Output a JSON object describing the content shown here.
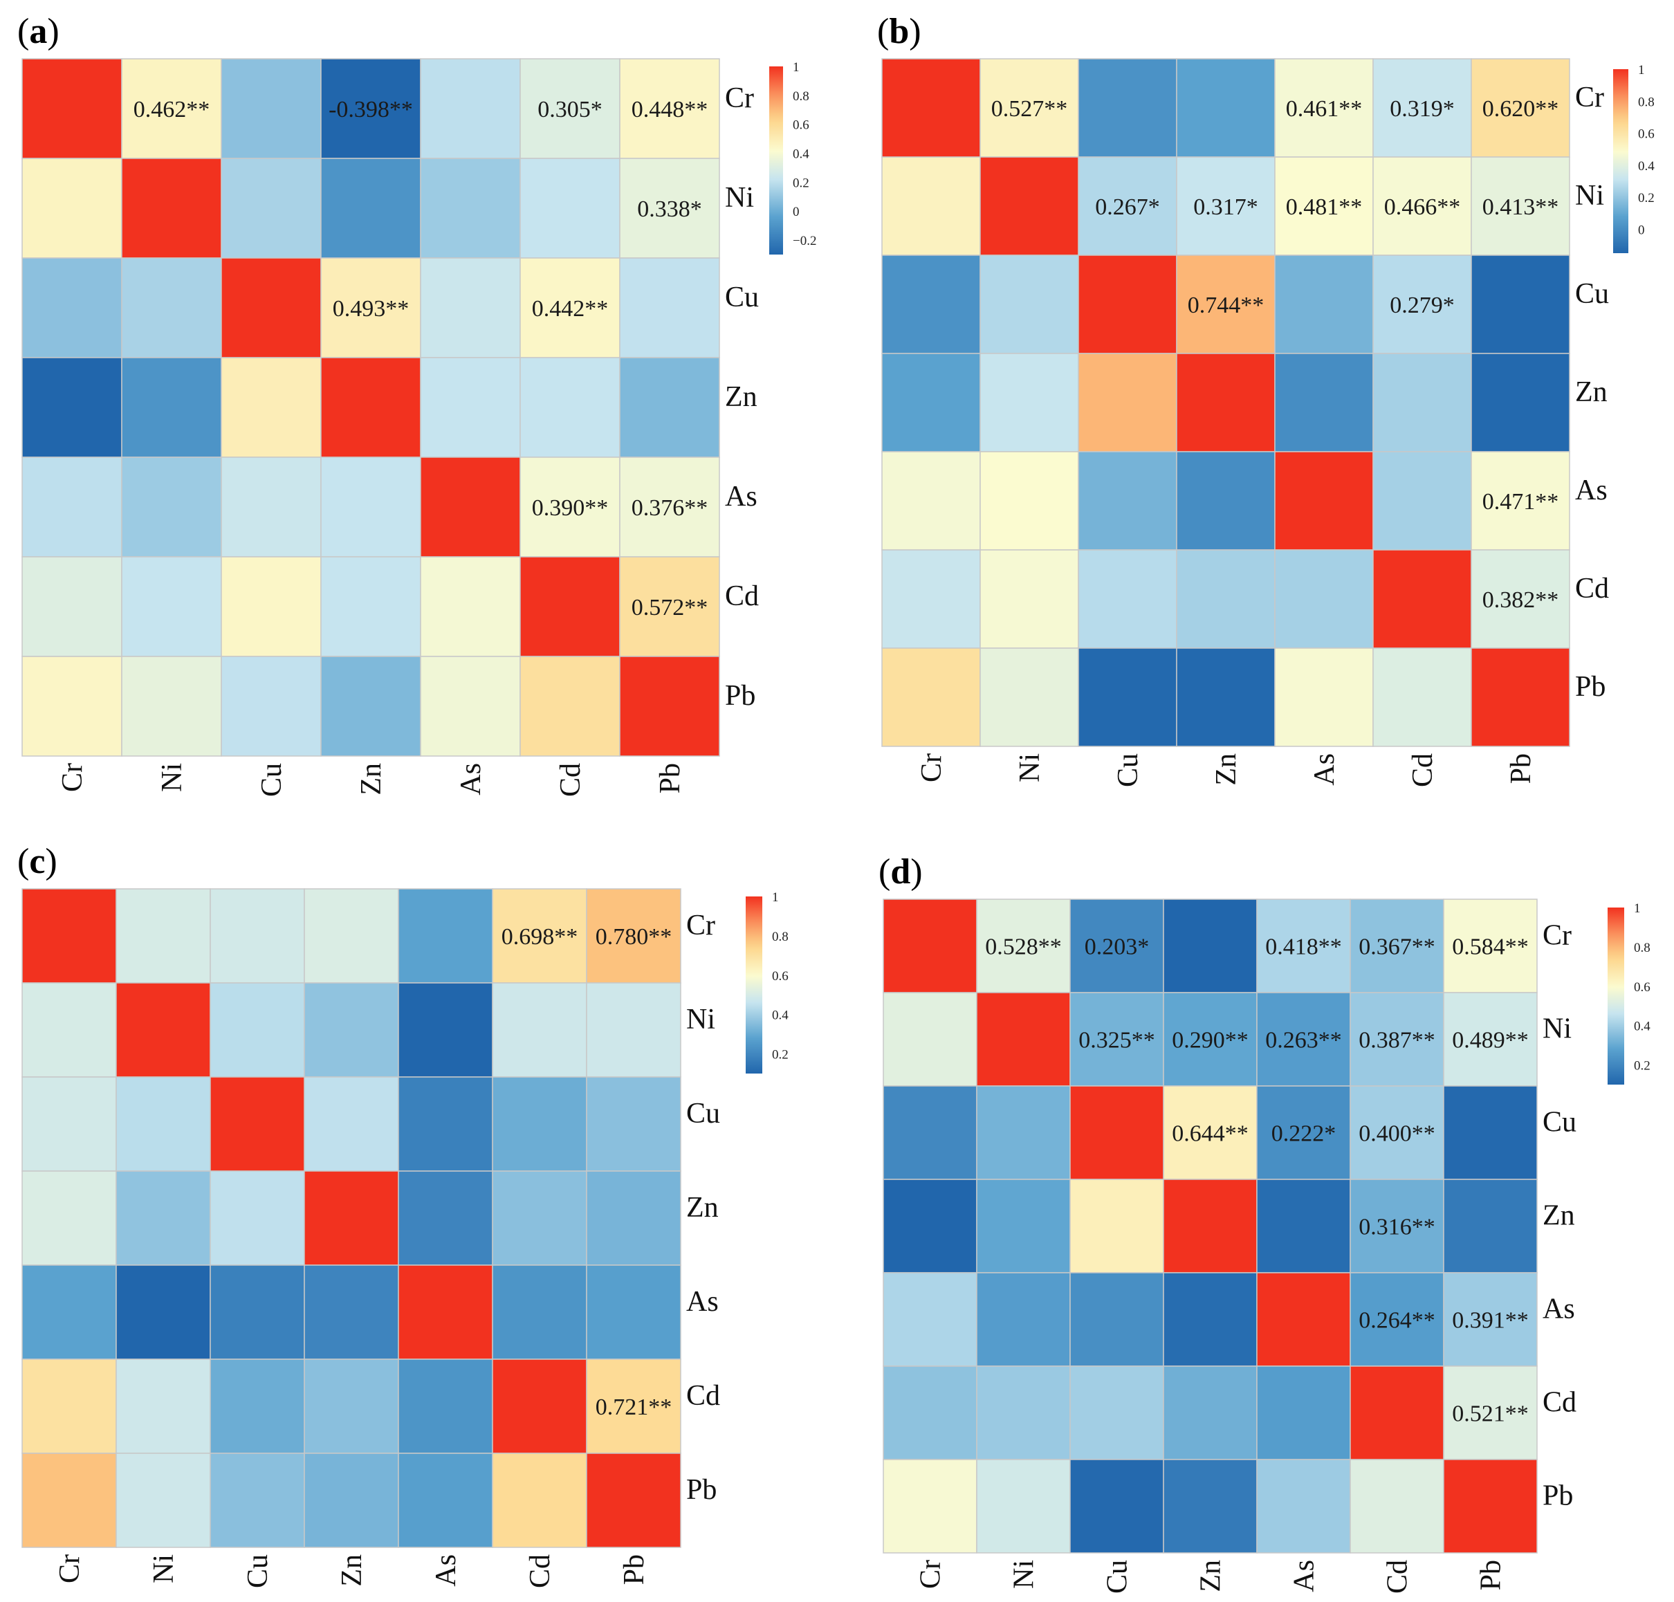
{
  "figure": {
    "colormap": {
      "stops": [
        {
          "t": 0.0,
          "color": "#2166ac"
        },
        {
          "t": 0.2,
          "color": "#5aa2cf"
        },
        {
          "t": 0.4,
          "color": "#c6e4ef"
        },
        {
          "t": 0.55,
          "color": "#fbfbd0"
        },
        {
          "t": 0.72,
          "color": "#fdd48a"
        },
        {
          "t": 0.86,
          "color": "#fa8c5a"
        },
        {
          "t": 1.0,
          "color": "#f2321f"
        }
      ],
      "grid_line_color": "#c8c8c8"
    }
  },
  "chart_data": [
    {
      "type": "heatmap",
      "panel": "a",
      "title": "(a)",
      "row_labels": [
        "Cr",
        "Ni",
        "Cu",
        "Zn",
        "As",
        "Cd",
        "Pb"
      ],
      "col_labels": [
        "Cr",
        "Ni",
        "Cu",
        "Zn",
        "As",
        "Cd",
        "Pb"
      ],
      "values": [
        [
          1.0,
          0.462,
          0.08,
          -0.398,
          0.2,
          0.305,
          0.448
        ],
        [
          0.462,
          1.0,
          0.15,
          -0.1,
          0.12,
          0.22,
          0.338
        ],
        [
          0.08,
          0.15,
          1.0,
          0.493,
          0.24,
          0.442,
          0.21
        ],
        [
          -0.398,
          -0.1,
          0.493,
          1.0,
          0.22,
          0.22,
          0.05
        ],
        [
          0.2,
          0.12,
          0.24,
          0.22,
          1.0,
          0.39,
          0.376
        ],
        [
          0.305,
          0.22,
          0.442,
          0.22,
          0.39,
          1.0,
          0.572
        ],
        [
          0.448,
          0.338,
          0.21,
          0.05,
          0.376,
          0.572,
          1.0
        ]
      ],
      "annotations": [
        {
          "row": 0,
          "col": 1,
          "text": "0.462**"
        },
        {
          "row": 0,
          "col": 3,
          "text": "-0.398**"
        },
        {
          "row": 0,
          "col": 5,
          "text": "0.305*"
        },
        {
          "row": 0,
          "col": 6,
          "text": "0.448**"
        },
        {
          "row": 1,
          "col": 6,
          "text": "0.338*"
        },
        {
          "row": 2,
          "col": 3,
          "text": "0.493**"
        },
        {
          "row": 2,
          "col": 5,
          "text": "0.442**"
        },
        {
          "row": 4,
          "col": 5,
          "text": "0.390**"
        },
        {
          "row": 4,
          "col": 6,
          "text": "0.376**"
        },
        {
          "row": 5,
          "col": 6,
          "text": "0.572**"
        }
      ],
      "colorbar": {
        "range": [
          -0.3,
          1.0
        ],
        "ticks": [
          "1",
          "0.8",
          "0.6",
          "0.4",
          "0.2",
          "0",
          "−0.2"
        ],
        "tick_values": [
          1.0,
          0.8,
          0.6,
          0.4,
          0.2,
          0.0,
          -0.2
        ]
      }
    },
    {
      "type": "heatmap",
      "panel": "b",
      "title": "(b)",
      "row_labels": [
        "Cr",
        "Ni",
        "Cu",
        "Zn",
        "As",
        "Cd",
        "Pb"
      ],
      "col_labels": [
        "Cr",
        "Ni",
        "Cu",
        "Zn",
        "As",
        "Cd",
        "Pb"
      ],
      "values": [
        [
          1.0,
          0.527,
          0.02,
          0.08,
          0.461,
          0.319,
          0.62
        ],
        [
          0.527,
          1.0,
          0.267,
          0.317,
          0.481,
          0.466,
          0.413
        ],
        [
          0.02,
          0.267,
          1.0,
          0.744,
          0.14,
          0.279,
          -0.14
        ],
        [
          0.08,
          0.317,
          0.744,
          1.0,
          0.0,
          0.24,
          -0.14
        ],
        [
          0.461,
          0.481,
          0.14,
          0.0,
          1.0,
          0.24,
          0.471
        ],
        [
          0.319,
          0.466,
          0.279,
          0.24,
          0.24,
          1.0,
          0.382
        ],
        [
          0.62,
          0.413,
          -0.14,
          -0.14,
          0.471,
          0.382,
          1.0
        ]
      ],
      "annotations": [
        {
          "row": 0,
          "col": 1,
          "text": "0.527**"
        },
        {
          "row": 0,
          "col": 4,
          "text": "0.461**"
        },
        {
          "row": 0,
          "col": 5,
          "text": "0.319*"
        },
        {
          "row": 0,
          "col": 6,
          "text": "0.620**"
        },
        {
          "row": 1,
          "col": 2,
          "text": "0.267*"
        },
        {
          "row": 1,
          "col": 3,
          "text": "0.317*"
        },
        {
          "row": 1,
          "col": 4,
          "text": "0.481**"
        },
        {
          "row": 1,
          "col": 5,
          "text": "0.466**"
        },
        {
          "row": 1,
          "col": 6,
          "text": "0.413**"
        },
        {
          "row": 2,
          "col": 3,
          "text": "0.744**"
        },
        {
          "row": 2,
          "col": 5,
          "text": "0.279*"
        },
        {
          "row": 4,
          "col": 6,
          "text": "0.471**"
        },
        {
          "row": 5,
          "col": 6,
          "text": "0.382**"
        }
      ],
      "colorbar": {
        "range": [
          -0.15,
          1.0
        ],
        "ticks": [
          "1",
          "0.8",
          "0.6",
          "0.4",
          "0.2",
          "0"
        ],
        "tick_values": [
          1.0,
          0.8,
          0.6,
          0.4,
          0.2,
          0.0
        ]
      }
    },
    {
      "type": "heatmap",
      "panel": "c",
      "title": "(c)",
      "row_labels": [
        "Cr",
        "Ni",
        "Cu",
        "Zn",
        "As",
        "Cd",
        "Pb"
      ],
      "col_labels": [
        "Cr",
        "Ni",
        "Cu",
        "Zn",
        "As",
        "Cd",
        "Pb"
      ],
      "values": [
        [
          1.0,
          0.5,
          0.49,
          0.51,
          0.28,
          0.698,
          0.78
        ],
        [
          0.5,
          1.0,
          0.44,
          0.37,
          0.1,
          0.48,
          0.48
        ],
        [
          0.49,
          0.44,
          1.0,
          0.45,
          0.18,
          0.31,
          0.36
        ],
        [
          0.51,
          0.37,
          0.45,
          1.0,
          0.19,
          0.36,
          0.33
        ],
        [
          0.28,
          0.1,
          0.18,
          0.19,
          1.0,
          0.24,
          0.27
        ],
        [
          0.698,
          0.48,
          0.31,
          0.36,
          0.24,
          1.0,
          0.721
        ],
        [
          0.78,
          0.48,
          0.36,
          0.33,
          0.27,
          0.721,
          1.0
        ]
      ],
      "annotations": [
        {
          "row": 0,
          "col": 5,
          "text": "0.698**"
        },
        {
          "row": 0,
          "col": 6,
          "text": "0.780**"
        },
        {
          "row": 5,
          "col": 6,
          "text": "0.721**"
        }
      ],
      "colorbar": {
        "range": [
          0.1,
          1.0
        ],
        "ticks": [
          "1",
          "0.8",
          "0.6",
          "0.4",
          "0.2"
        ],
        "tick_values": [
          1.0,
          0.8,
          0.6,
          0.4,
          0.2
        ]
      }
    },
    {
      "type": "heatmap",
      "panel": "d",
      "title": "(d)",
      "row_labels": [
        "Cr",
        "Ni",
        "Cu",
        "Zn",
        "As",
        "Cd",
        "Pb"
      ],
      "col_labels": [
        "Cr",
        "Ni",
        "Cu",
        "Zn",
        "As",
        "Cd",
        "Pb"
      ],
      "values": [
        [
          1.0,
          0.528,
          0.203,
          0.1,
          0.418,
          0.367,
          0.584
        ],
        [
          0.528,
          1.0,
          0.325,
          0.29,
          0.263,
          0.387,
          0.489
        ],
        [
          0.203,
          0.325,
          1.0,
          0.644,
          0.222,
          0.4,
          0.11
        ],
        [
          0.1,
          0.29,
          0.644,
          1.0,
          0.12,
          0.316,
          0.16
        ],
        [
          0.418,
          0.263,
          0.222,
          0.12,
          1.0,
          0.264,
          0.391
        ],
        [
          0.367,
          0.387,
          0.4,
          0.316,
          0.264,
          1.0,
          0.521
        ],
        [
          0.584,
          0.489,
          0.11,
          0.16,
          0.391,
          0.521,
          1.0
        ]
      ],
      "annotations": [
        {
          "row": 0,
          "col": 1,
          "text": "0.528**"
        },
        {
          "row": 0,
          "col": 2,
          "text": "0.203*"
        },
        {
          "row": 0,
          "col": 4,
          "text": "0.418**"
        },
        {
          "row": 0,
          "col": 5,
          "text": "0.367**"
        },
        {
          "row": 0,
          "col": 6,
          "text": "0.584**"
        },
        {
          "row": 1,
          "col": 2,
          "text": "0.325**"
        },
        {
          "row": 1,
          "col": 3,
          "text": "0.290**"
        },
        {
          "row": 1,
          "col": 4,
          "text": "0.263**"
        },
        {
          "row": 1,
          "col": 5,
          "text": "0.387**"
        },
        {
          "row": 1,
          "col": 6,
          "text": "0.489**"
        },
        {
          "row": 2,
          "col": 3,
          "text": "0.644**"
        },
        {
          "row": 2,
          "col": 4,
          "text": "0.222*"
        },
        {
          "row": 2,
          "col": 5,
          "text": "0.400**"
        },
        {
          "row": 3,
          "col": 5,
          "text": "0.316**"
        },
        {
          "row": 4,
          "col": 5,
          "text": "0.264**"
        },
        {
          "row": 4,
          "col": 6,
          "text": "0.391**"
        },
        {
          "row": 5,
          "col": 6,
          "text": "0.521**"
        }
      ],
      "colorbar": {
        "range": [
          0.1,
          1.0
        ],
        "ticks": [
          "1",
          "0.8",
          "0.6",
          "0.4",
          "0.2"
        ],
        "tick_values": [
          1.0,
          0.8,
          0.6,
          0.4,
          0.2
        ]
      }
    }
  ]
}
